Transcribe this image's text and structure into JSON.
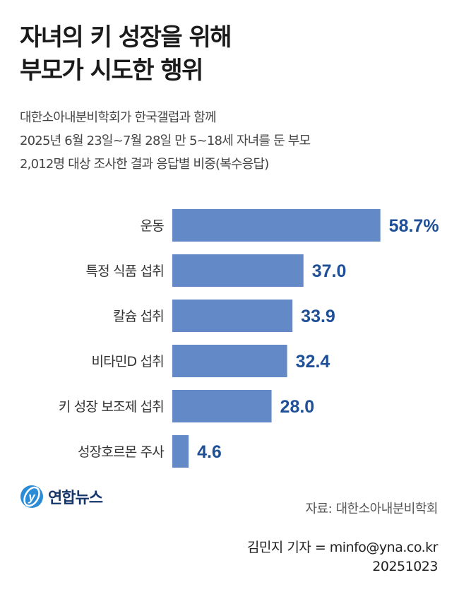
{
  "title_lines": [
    "자녀의 키 성장을 위해",
    "부모가 시도한 행위"
  ],
  "subtitle_lines": [
    "대한소아내분비학회가 한국갤럽과 함께",
    "2025년 6월 23일~7월 28일 만 5~18세 자녀를 둔 부모",
    "2,012명 대상 조사한 결과 응답별 비중(복수응답)"
  ],
  "chart_data": {
    "type": "bar",
    "orientation": "horizontal",
    "categories": [
      "운동",
      "특정 식품 섭취",
      "칼슘 섭취",
      "비타민D 섭취",
      "키 성장 보조제 섭취",
      "성장호르몬 주사"
    ],
    "values": [
      58.7,
      37.0,
      33.9,
      32.4,
      28.0,
      4.6
    ],
    "value_labels": [
      "58.7%",
      "37.0",
      "33.9",
      "32.4",
      "28.0",
      "4.6"
    ],
    "unit": "%",
    "bar_color": "#6389c6",
    "label_color": "#1f4f96"
  },
  "logo_text": "연합뉴스",
  "source": "자료: 대한소아내분비학회",
  "credit": "김민지 기자 = minfo@yna.co.kr",
  "date": "20251023"
}
